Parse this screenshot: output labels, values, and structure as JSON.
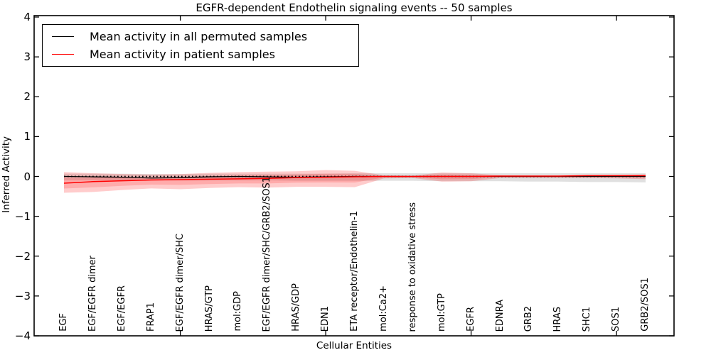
{
  "chart_data": {
    "type": "line",
    "title": "EGFR-dependent Endothelin signaling events -- 50 samples",
    "xlabel": "Cellular Entities",
    "ylabel": "Inferred Activity",
    "ylim": [
      -4,
      4
    ],
    "grid": false,
    "legend_position": "upper left",
    "ytick_labels": [
      "4",
      "3",
      "2",
      "1",
      "0",
      "−1",
      "−2",
      "−3",
      "−4"
    ],
    "ytick_values": [
      4,
      3,
      2,
      1,
      0,
      -1,
      -2,
      -3,
      -4
    ],
    "top_axis_tick_categories": [
      4,
      9,
      14,
      19
    ],
    "categories": [
      "EGF",
      "EGF/EGFR dimer",
      "EGF/EGFR",
      "FRAP1",
      "EGF/EGFR dimer/SHC",
      "HRAS/GTP",
      "mol:GDP",
      "EGF/EGFR dimer/SHC/GRB2/SOS1",
      "HRAS/GDP",
      "EDN1",
      "ETA receptor/Endothelin-1",
      "mol:Ca2+",
      "response to oxidative stress",
      "mol:GTP",
      "EGFR",
      "EDNRA",
      "GRB2",
      "HRAS",
      "SHC1",
      "SOS1",
      "GRB2/SOS1"
    ],
    "series": [
      {
        "name": "Mean activity in all permuted samples",
        "color": "#000000",
        "values": [
          0.0,
          -0.01,
          -0.02,
          -0.04,
          -0.03,
          -0.01,
          0.0,
          -0.01,
          -0.02,
          -0.01,
          0.0,
          0.0,
          0.0,
          0.0,
          0.0,
          0.0,
          0.0,
          0.0,
          0.0,
          0.0,
          0.0
        ]
      },
      {
        "name": "Mean activity in patient samples",
        "color": "#ff0000",
        "values": [
          -0.17,
          -0.13,
          -0.11,
          -0.09,
          -0.08,
          -0.07,
          -0.06,
          -0.05,
          -0.03,
          -0.02,
          -0.01,
          0.0,
          0.0,
          0.0,
          0.0,
          0.01,
          0.01,
          0.01,
          0.02,
          0.02,
          0.02
        ]
      }
    ],
    "bands": [
      {
        "name": "permuted-samples-band",
        "color": "#000000",
        "opacity": 0.12,
        "upper": [
          0.07,
          0.07,
          0.07,
          0.06,
          0.06,
          0.07,
          0.07,
          0.07,
          0.07,
          0.07,
          0.08,
          0.08,
          0.08,
          0.08,
          0.08,
          0.08,
          0.08,
          0.08,
          0.08,
          0.08,
          0.08
        ],
        "lower": [
          -0.1,
          -0.1,
          -0.1,
          -0.1,
          -0.1,
          -0.1,
          -0.1,
          -0.1,
          -0.11,
          -0.11,
          -0.11,
          -0.11,
          -0.11,
          -0.12,
          -0.12,
          -0.12,
          -0.13,
          -0.13,
          -0.14,
          -0.14,
          -0.15
        ]
      },
      {
        "name": "patient-samples-band",
        "color": "#ff0000",
        "opacity": 0.2,
        "upper": [
          0.11,
          0.08,
          0.06,
          0.05,
          0.06,
          0.09,
          0.11,
          0.12,
          0.13,
          0.16,
          0.14,
          0.03,
          0.02,
          0.1,
          0.08,
          0.03,
          0.02,
          0.02,
          0.02,
          0.03,
          0.05
        ],
        "lower": [
          -0.41,
          -0.39,
          -0.34,
          -0.3,
          -0.32,
          -0.29,
          -0.27,
          -0.28,
          -0.26,
          -0.26,
          -0.27,
          -0.05,
          -0.04,
          -0.13,
          -0.12,
          -0.04,
          -0.04,
          -0.04,
          -0.04,
          -0.05,
          -0.07
        ]
      }
    ],
    "zero_line": {
      "y": 0,
      "style": "dotted",
      "color": "#000000"
    }
  },
  "legend": {
    "entries": [
      {
        "label": "Mean activity in all permuted samples",
        "color": "#000000"
      },
      {
        "label": "Mean activity in patient samples",
        "color": "#ff0000"
      }
    ]
  }
}
